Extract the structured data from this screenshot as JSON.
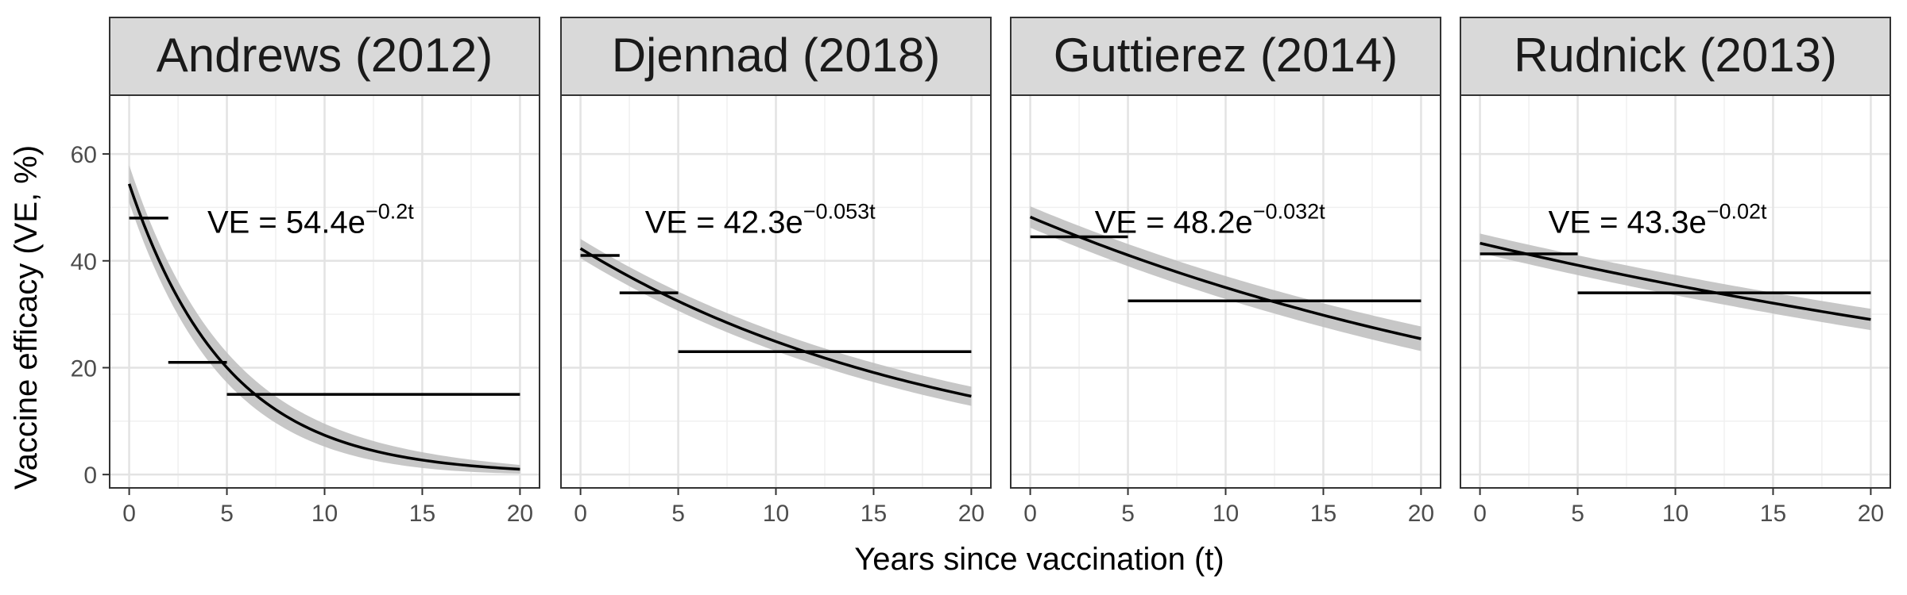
{
  "chart_data": {
    "type": "line",
    "xlabel": "Years since vaccination (t)",
    "ylabel": "Vaccine efficacy (VE, %)",
    "xlim": [
      -1,
      21
    ],
    "ylim": [
      -2.5,
      71
    ],
    "x_ticks": [
      0,
      5,
      10,
      15,
      20
    ],
    "y_ticks": [
      0,
      20,
      40,
      60
    ],
    "x_tick_labels": [
      "0",
      "5",
      "10",
      "15",
      "20"
    ],
    "y_tick_labels": [
      "0",
      "20",
      "40",
      "60"
    ],
    "grid": true,
    "panels": [
      {
        "title": "Andrews (2012)",
        "equation_prefix": "VE = 54.4e",
        "equation_exponent": "−0.2t",
        "annotation_at": [
          4,
          48.5
        ],
        "fit": {
          "a": 54.4,
          "k": 0.2
        },
        "ci_halfwidth": [
          3.5,
          0.8
        ],
        "steps": [
          {
            "x0": 0,
            "x1": 2,
            "y": 48
          },
          {
            "x0": 2,
            "x1": 5,
            "y": 21
          },
          {
            "x0": 5,
            "x1": 20,
            "y": 15
          }
        ]
      },
      {
        "title": "Djennad (2018)",
        "equation_prefix": "VE = 42.3e",
        "equation_exponent": "−0.053t",
        "annotation_at": [
          3.3,
          48.5
        ],
        "fit": {
          "a": 42.3,
          "k": 0.053
        },
        "ci_halfwidth": [
          1.8,
          1.8
        ],
        "steps": [
          {
            "x0": 0,
            "x1": 2,
            "y": 41
          },
          {
            "x0": 2,
            "x1": 5,
            "y": 34
          },
          {
            "x0": 5,
            "x1": 20,
            "y": 23
          }
        ]
      },
      {
        "title": "Guttierez (2014)",
        "equation_prefix": "VE = 48.2e",
        "equation_exponent": "−0.032t",
        "annotation_at": [
          3.3,
          48.5
        ],
        "fit": {
          "a": 48.2,
          "k": 0.032
        },
        "ci_halfwidth": [
          2.0,
          2.3
        ],
        "steps": [
          {
            "x0": 0,
            "x1": 5,
            "y": 44.5
          },
          {
            "x0": 5,
            "x1": 20,
            "y": 32.5
          }
        ]
      },
      {
        "title": "Rudnick (2013)",
        "equation_prefix": "VE = 43.3e",
        "equation_exponent": "−0.02t",
        "annotation_at": [
          3.5,
          48.5
        ],
        "fit": {
          "a": 43.3,
          "k": 0.02
        },
        "ci_halfwidth": [
          1.8,
          2.0
        ],
        "steps": [
          {
            "x0": 0,
            "x1": 5,
            "y": 41.3
          },
          {
            "x0": 5,
            "x1": 20,
            "y": 34
          }
        ]
      }
    ]
  }
}
